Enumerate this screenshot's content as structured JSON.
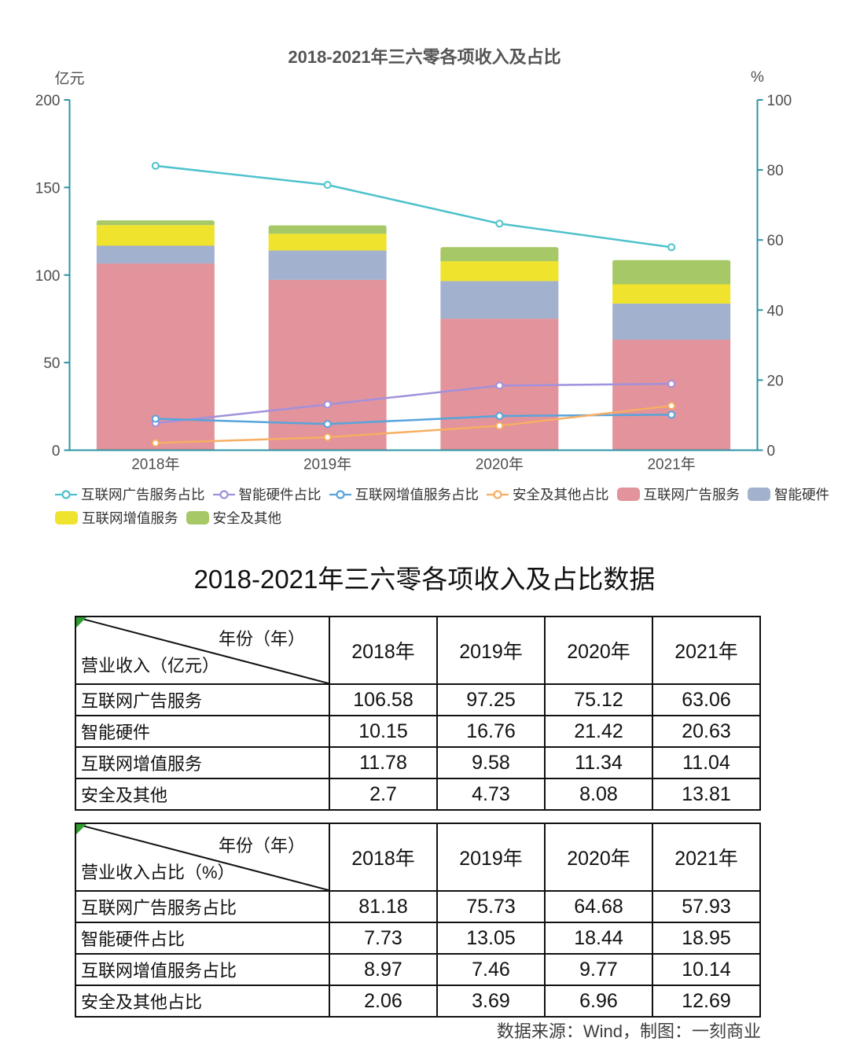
{
  "chart": {
    "title": "2018-2021年三六零各项收入及占比",
    "left_axis": {
      "label": "亿元",
      "ticks": [
        0,
        50,
        100,
        150,
        200
      ]
    },
    "right_axis": {
      "label": "%",
      "ticks": [
        0,
        20,
        40,
        60,
        80,
        100
      ]
    },
    "axis_color": "#2e93a4"
  },
  "chart_data": {
    "type": "combo-stacked-bar-line",
    "categories": [
      "2018年",
      "2019年",
      "2020年",
      "2021年"
    ],
    "left_ylim": [
      0,
      200
    ],
    "right_ylim": [
      0,
      100
    ],
    "left_unit": "亿元",
    "right_unit": "%",
    "legend_position": "bottom",
    "grid": false,
    "bar_series": [
      {
        "name": "互联网广告服务",
        "color": "#e2939b",
        "axis": "left",
        "values": [
          106.58,
          97.25,
          75.12,
          63.06
        ]
      },
      {
        "name": "智能硬件",
        "color": "#a2b1ce",
        "axis": "left",
        "values": [
          10.15,
          16.76,
          21.42,
          20.63
        ]
      },
      {
        "name": "互联网增值服务",
        "color": "#efe32e",
        "axis": "left",
        "values": [
          11.78,
          9.58,
          11.34,
          11.04
        ]
      },
      {
        "name": "安全及其他",
        "color": "#a6c866",
        "axis": "left",
        "values": [
          2.7,
          4.73,
          8.08,
          13.81
        ]
      }
    ],
    "line_series": [
      {
        "name": "互联网广告服务占比",
        "color": "#4ec2cc",
        "axis": "right",
        "values": [
          81.18,
          75.73,
          64.68,
          57.93
        ]
      },
      {
        "name": "智能硬件占比",
        "color": "#a191dc",
        "axis": "right",
        "values": [
          7.73,
          13.05,
          18.44,
          18.95
        ]
      },
      {
        "name": "互联网增值服务占比",
        "color": "#57a4dc",
        "axis": "right",
        "values": [
          8.97,
          7.46,
          9.77,
          10.14
        ]
      },
      {
        "name": "安全及其他占比",
        "color": "#f7ae63",
        "axis": "right",
        "values": [
          2.06,
          3.69,
          6.96,
          12.69
        ]
      }
    ]
  },
  "tables_title": "2018-2021年三六零各项收入及占比数据",
  "tables": [
    {
      "corner_top": "年份（年）",
      "corner_bottom": "营业收入（亿元）",
      "columns": [
        "2018年",
        "2019年",
        "2020年",
        "2021年"
      ],
      "rows": [
        {
          "label": "互联网广告服务",
          "values": [
            "106.58",
            "97.25",
            "75.12",
            "63.06"
          ]
        },
        {
          "label": "智能硬件",
          "values": [
            "10.15",
            "16.76",
            "21.42",
            "20.63"
          ]
        },
        {
          "label": "互联网增值服务",
          "values": [
            "11.78",
            "9.58",
            "11.34",
            "11.04"
          ]
        },
        {
          "label": "安全及其他",
          "values": [
            "2.7",
            "4.73",
            "8.08",
            "13.81"
          ]
        }
      ]
    },
    {
      "corner_top": "年份（年）",
      "corner_bottom": "营业收入占比（%）",
      "columns": [
        "2018年",
        "2019年",
        "2020年",
        "2021年"
      ],
      "rows": [
        {
          "label": "互联网广告服务占比",
          "values": [
            "81.18",
            "75.73",
            "64.68",
            "57.93"
          ]
        },
        {
          "label": "智能硬件占比",
          "values": [
            "7.73",
            "13.05",
            "18.44",
            "18.95"
          ]
        },
        {
          "label": "互联网增值服务占比",
          "values": [
            "8.97",
            "7.46",
            "9.77",
            "10.14"
          ]
        },
        {
          "label": "安全及其他占比",
          "values": [
            "2.06",
            "3.69",
            "6.96",
            "12.69"
          ]
        }
      ]
    }
  ],
  "footer": "数据来源：Wind，制图：一刻商业"
}
